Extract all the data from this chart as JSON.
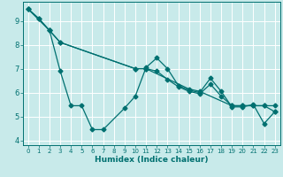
{
  "xlabel": "Humidex (Indice chaleur)",
  "background_color": "#c8eaea",
  "grid_color": "#b0d8d8",
  "line_color": "#007070",
  "xlim": [
    -0.5,
    23.5
  ],
  "ylim": [
    3.8,
    9.8
  ],
  "yticks": [
    4,
    5,
    6,
    7,
    8,
    9
  ],
  "xticks": [
    0,
    1,
    2,
    3,
    4,
    5,
    6,
    7,
    8,
    9,
    10,
    11,
    12,
    13,
    14,
    15,
    16,
    17,
    18,
    19,
    20,
    21,
    22,
    23
  ],
  "line1_x": [
    0,
    1,
    2,
    3,
    4,
    5,
    6,
    7,
    9,
    10,
    11,
    12,
    13,
    14,
    15,
    16,
    17,
    18,
    19,
    20,
    21,
    22,
    23
  ],
  "line1_y": [
    9.5,
    9.1,
    8.6,
    6.9,
    5.45,
    5.45,
    4.45,
    4.45,
    5.35,
    5.85,
    7.05,
    7.45,
    7.0,
    6.3,
    6.1,
    6.0,
    6.6,
    6.05,
    5.4,
    5.4,
    5.5,
    4.7,
    5.2
  ],
  "line2_x": [
    0,
    1,
    2,
    3,
    10,
    11,
    15,
    16,
    19,
    20,
    21,
    22,
    23
  ],
  "line2_y": [
    9.5,
    9.1,
    8.6,
    8.1,
    7.0,
    7.0,
    6.15,
    6.05,
    5.45,
    5.45,
    5.45,
    5.45,
    5.45
  ],
  "line3_x": [
    0,
    2,
    3,
    10,
    11,
    12,
    13,
    14,
    15,
    16,
    17,
    18,
    19,
    20,
    21,
    22,
    23
  ],
  "line3_y": [
    9.5,
    8.6,
    8.1,
    7.0,
    7.0,
    6.9,
    6.55,
    6.25,
    6.05,
    5.95,
    6.35,
    5.85,
    5.45,
    5.45,
    5.45,
    5.45,
    5.2
  ]
}
